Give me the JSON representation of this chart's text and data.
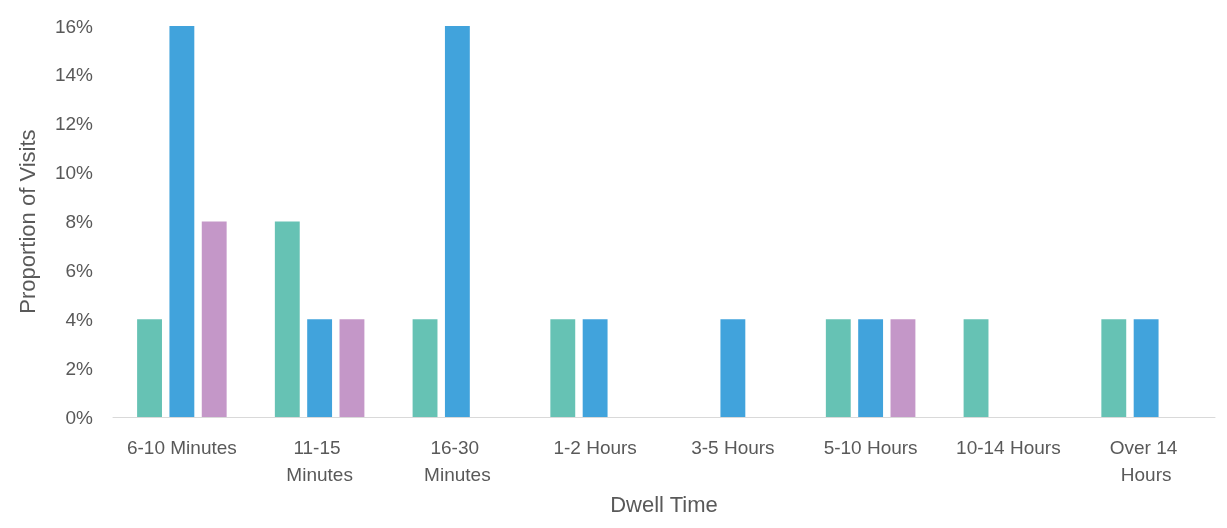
{
  "chart_data": {
    "type": "bar",
    "xlabel": "Dwell Time",
    "ylabel": "Proportion of Visits",
    "categories": [
      "6-10 Minutes",
      "11-15 Minutes",
      "16-30 Minutes",
      "1-2 Hours",
      "3-5 Hours",
      "5-10 Hours",
      "10-14 Hours",
      "Over 14 Hours"
    ],
    "series": [
      {
        "color": "#66c2b4",
        "values": [
          4,
          8,
          4,
          4,
          0,
          4,
          4,
          4
        ]
      },
      {
        "color": "#41a3dc",
        "values": [
          16,
          4,
          16,
          4,
          4,
          4,
          0,
          4
        ]
      },
      {
        "color": "#c497c8",
        "values": [
          8,
          4,
          0,
          0,
          0,
          4,
          0,
          0
        ]
      }
    ],
    "ylim": [
      0,
      16
    ],
    "yticks": [
      {
        "value": 0,
        "label": "0%"
      },
      {
        "value": 2,
        "label": "2%"
      },
      {
        "value": 4,
        "label": "4%"
      },
      {
        "value": 6,
        "label": "6%"
      },
      {
        "value": 8,
        "label": "8%"
      },
      {
        "value": 10,
        "label": "10%"
      },
      {
        "value": 12,
        "label": "12%"
      },
      {
        "value": 14,
        "label": "14%"
      },
      {
        "value": 16,
        "label": "16%"
      }
    ],
    "grid": false
  }
}
